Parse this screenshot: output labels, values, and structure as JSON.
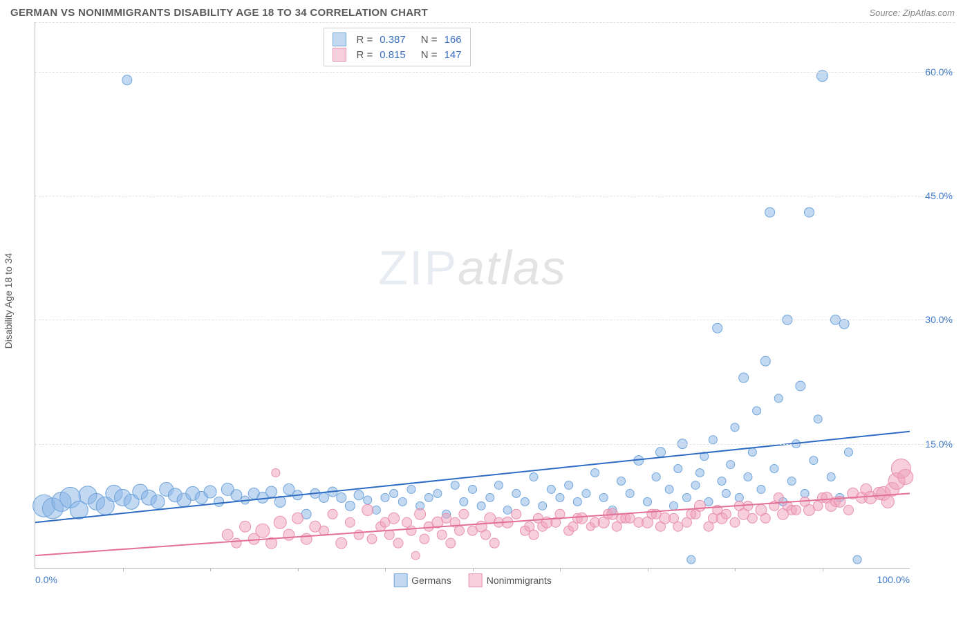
{
  "title": "GERMAN VS NONIMMIGRANTS DISABILITY AGE 18 TO 34 CORRELATION CHART",
  "source": "Source: ZipAtlas.com",
  "ylabel": "Disability Age 18 to 34",
  "watermark_a": "ZIP",
  "watermark_b": "atlas",
  "chart": {
    "type": "scatter",
    "xlim": [
      0,
      100
    ],
    "ylim": [
      0,
      66
    ],
    "x_ticks": [
      0,
      100
    ],
    "x_tick_labels": [
      "0.0%",
      "100.0%"
    ],
    "x_minor_ticks": [
      10,
      20,
      30,
      40,
      50,
      60,
      70,
      80,
      90
    ],
    "y_gridlines": [
      15,
      30,
      45,
      60,
      66
    ],
    "y_tick_labels": [
      "15.0%",
      "30.0%",
      "45.0%",
      "60.0%",
      ""
    ],
    "background_color": "#ffffff",
    "grid_color": "#e0e0e0"
  },
  "series": [
    {
      "name": "Germans",
      "color_fill": "rgba(135,180,230,0.5)",
      "color_stroke": "#6fa4db",
      "line_color": "#2e6cc4",
      "line_width": 2,
      "R": "0.387",
      "N": "166",
      "trend": {
        "x1": 0,
        "y1": 5.5,
        "x2": 100,
        "y2": 16.5
      },
      "points": [
        {
          "x": 1,
          "y": 7.5,
          "r": 16
        },
        {
          "x": 2,
          "y": 7.2,
          "r": 15
        },
        {
          "x": 3,
          "y": 8,
          "r": 14
        },
        {
          "x": 4,
          "y": 8.5,
          "r": 15
        },
        {
          "x": 5,
          "y": 7,
          "r": 13
        },
        {
          "x": 6,
          "y": 8.8,
          "r": 13
        },
        {
          "x": 7,
          "y": 8,
          "r": 12
        },
        {
          "x": 8,
          "y": 7.5,
          "r": 13
        },
        {
          "x": 9,
          "y": 9,
          "r": 12
        },
        {
          "x": 10,
          "y": 8.5,
          "r": 12
        },
        {
          "x": 11,
          "y": 8,
          "r": 11
        },
        {
          "x": 12,
          "y": 9.2,
          "r": 11
        },
        {
          "x": 13,
          "y": 8.5,
          "r": 11
        },
        {
          "x": 14,
          "y": 8,
          "r": 10
        },
        {
          "x": 15,
          "y": 9.5,
          "r": 10
        },
        {
          "x": 16,
          "y": 8.8,
          "r": 10
        },
        {
          "x": 17,
          "y": 8.2,
          "r": 10
        },
        {
          "x": 18,
          "y": 9,
          "r": 10
        },
        {
          "x": 19,
          "y": 8.5,
          "r": 9
        },
        {
          "x": 20,
          "y": 9.2,
          "r": 9
        },
        {
          "x": 21,
          "y": 8,
          "r": 7
        },
        {
          "x": 22,
          "y": 9.5,
          "r": 9
        },
        {
          "x": 23,
          "y": 8.8,
          "r": 8
        },
        {
          "x": 24,
          "y": 8.2,
          "r": 6
        },
        {
          "x": 25,
          "y": 9,
          "r": 8
        },
        {
          "x": 26,
          "y": 8.5,
          "r": 8
        },
        {
          "x": 27,
          "y": 9.2,
          "r": 8
        },
        {
          "x": 28,
          "y": 8,
          "r": 8
        },
        {
          "x": 29,
          "y": 9.5,
          "r": 8
        },
        {
          "x": 30,
          "y": 8.8,
          "r": 7
        },
        {
          "x": 31,
          "y": 6.5,
          "r": 7
        },
        {
          "x": 32,
          "y": 9,
          "r": 7
        },
        {
          "x": 33,
          "y": 8.5,
          "r": 7
        },
        {
          "x": 34,
          "y": 9.2,
          "r": 7
        },
        {
          "x": 35,
          "y": 8.5,
          "r": 7
        },
        {
          "x": 36,
          "y": 7.5,
          "r": 7
        },
        {
          "x": 37,
          "y": 8.8,
          "r": 7
        },
        {
          "x": 38,
          "y": 8.2,
          "r": 6
        },
        {
          "x": 39,
          "y": 7,
          "r": 6
        },
        {
          "x": 40,
          "y": 8.5,
          "r": 6
        },
        {
          "x": 41,
          "y": 9,
          "r": 6
        },
        {
          "x": 42,
          "y": 8,
          "r": 6
        },
        {
          "x": 43,
          "y": 9.5,
          "r": 6
        },
        {
          "x": 44,
          "y": 7.5,
          "r": 6
        },
        {
          "x": 45,
          "y": 8.5,
          "r": 6
        },
        {
          "x": 46,
          "y": 9,
          "r": 6
        },
        {
          "x": 47,
          "y": 6.5,
          "r": 6
        },
        {
          "x": 48,
          "y": 10,
          "r": 6
        },
        {
          "x": 49,
          "y": 8,
          "r": 6
        },
        {
          "x": 50,
          "y": 9.5,
          "r": 6
        },
        {
          "x": 51,
          "y": 7.5,
          "r": 6
        },
        {
          "x": 52,
          "y": 8.5,
          "r": 6
        },
        {
          "x": 53,
          "y": 10,
          "r": 6
        },
        {
          "x": 54,
          "y": 7,
          "r": 6
        },
        {
          "x": 55,
          "y": 9,
          "r": 6
        },
        {
          "x": 56,
          "y": 8,
          "r": 6
        },
        {
          "x": 57,
          "y": 11,
          "r": 6
        },
        {
          "x": 58,
          "y": 7.5,
          "r": 6
        },
        {
          "x": 59,
          "y": 9.5,
          "r": 6
        },
        {
          "x": 60,
          "y": 8.5,
          "r": 6
        },
        {
          "x": 61,
          "y": 10,
          "r": 6
        },
        {
          "x": 62,
          "y": 8,
          "r": 6
        },
        {
          "x": 63,
          "y": 9,
          "r": 6
        },
        {
          "x": 64,
          "y": 11.5,
          "r": 6
        },
        {
          "x": 65,
          "y": 8.5,
          "r": 6
        },
        {
          "x": 66,
          "y": 7,
          "r": 6
        },
        {
          "x": 67,
          "y": 10.5,
          "r": 6
        },
        {
          "x": 68,
          "y": 9,
          "r": 6
        },
        {
          "x": 69,
          "y": 13,
          "r": 7
        },
        {
          "x": 70,
          "y": 8,
          "r": 6
        },
        {
          "x": 71,
          "y": 11,
          "r": 6
        },
        {
          "x": 71.5,
          "y": 14,
          "r": 7
        },
        {
          "x": 72.5,
          "y": 9.5,
          "r": 6
        },
        {
          "x": 73,
          "y": 7.5,
          "r": 6
        },
        {
          "x": 73.5,
          "y": 12,
          "r": 6
        },
        {
          "x": 74,
          "y": 15,
          "r": 7
        },
        {
          "x": 74.5,
          "y": 8.5,
          "r": 6
        },
        {
          "x": 75.5,
          "y": 10,
          "r": 6
        },
        {
          "x": 76,
          "y": 11.5,
          "r": 6
        },
        {
          "x": 76.5,
          "y": 13.5,
          "r": 6
        },
        {
          "x": 77,
          "y": 8,
          "r": 6
        },
        {
          "x": 77.5,
          "y": 15.5,
          "r": 6
        },
        {
          "x": 78,
          "y": 29,
          "r": 7
        },
        {
          "x": 78.5,
          "y": 10.5,
          "r": 6
        },
        {
          "x": 79,
          "y": 9,
          "r": 6
        },
        {
          "x": 79.5,
          "y": 12.5,
          "r": 6
        },
        {
          "x": 80,
          "y": 17,
          "r": 6
        },
        {
          "x": 80.5,
          "y": 8.5,
          "r": 6
        },
        {
          "x": 81,
          "y": 23,
          "r": 7
        },
        {
          "x": 81.5,
          "y": 11,
          "r": 6
        },
        {
          "x": 82,
          "y": 14,
          "r": 6
        },
        {
          "x": 82.5,
          "y": 19,
          "r": 6
        },
        {
          "x": 83,
          "y": 9.5,
          "r": 6
        },
        {
          "x": 83.5,
          "y": 25,
          "r": 7
        },
        {
          "x": 84,
          "y": 43,
          "r": 7
        },
        {
          "x": 84.5,
          "y": 12,
          "r": 6
        },
        {
          "x": 85,
          "y": 20.5,
          "r": 6
        },
        {
          "x": 85.5,
          "y": 8,
          "r": 6
        },
        {
          "x": 86,
          "y": 30,
          "r": 7
        },
        {
          "x": 86.5,
          "y": 10.5,
          "r": 6
        },
        {
          "x": 87,
          "y": 15,
          "r": 6
        },
        {
          "x": 87.5,
          "y": 22,
          "r": 7
        },
        {
          "x": 88,
          "y": 9,
          "r": 6
        },
        {
          "x": 88.5,
          "y": 43,
          "r": 7
        },
        {
          "x": 89,
          "y": 13,
          "r": 6
        },
        {
          "x": 89.5,
          "y": 18,
          "r": 6
        },
        {
          "x": 90,
          "y": 59.5,
          "r": 8
        },
        {
          "x": 75,
          "y": 1,
          "r": 6
        },
        {
          "x": 91,
          "y": 11,
          "r": 6
        },
        {
          "x": 91.5,
          "y": 30,
          "r": 7
        },
        {
          "x": 92,
          "y": 8.5,
          "r": 6
        },
        {
          "x": 92.5,
          "y": 29.5,
          "r": 7
        },
        {
          "x": 93,
          "y": 14,
          "r": 6
        },
        {
          "x": 94,
          "y": 1,
          "r": 6
        },
        {
          "x": 10.5,
          "y": 59,
          "r": 7
        }
      ]
    },
    {
      "name": "Nonimmigrants",
      "color_fill": "rgba(240,160,185,0.5)",
      "color_stroke": "#e891ae",
      "line_color": "#e36f94",
      "line_width": 2,
      "R": "0.815",
      "N": "147",
      "trend": {
        "x1": 0,
        "y1": 1.5,
        "x2": 100,
        "y2": 9
      },
      "points": [
        {
          "x": 22,
          "y": 4,
          "r": 8
        },
        {
          "x": 23,
          "y": 3,
          "r": 7
        },
        {
          "x": 24,
          "y": 5,
          "r": 8
        },
        {
          "x": 25,
          "y": 3.5,
          "r": 8
        },
        {
          "x": 26,
          "y": 4.5,
          "r": 10
        },
        {
          "x": 27,
          "y": 3,
          "r": 8
        },
        {
          "x": 27.5,
          "y": 11.5,
          "r": 6
        },
        {
          "x": 28,
          "y": 5.5,
          "r": 9
        },
        {
          "x": 29,
          "y": 4,
          "r": 8
        },
        {
          "x": 30,
          "y": 6,
          "r": 8
        },
        {
          "x": 31,
          "y": 3.5,
          "r": 8
        },
        {
          "x": 32,
          "y": 5,
          "r": 8
        },
        {
          "x": 33,
          "y": 4.5,
          "r": 7
        },
        {
          "x": 34,
          "y": 6.5,
          "r": 7
        },
        {
          "x": 35,
          "y": 3,
          "r": 8
        },
        {
          "x": 36,
          "y": 5.5,
          "r": 7
        },
        {
          "x": 37,
          "y": 4,
          "r": 7
        },
        {
          "x": 38,
          "y": 7,
          "r": 8
        },
        {
          "x": 38.5,
          "y": 3.5,
          "r": 7
        },
        {
          "x": 39.5,
          "y": 5,
          "r": 7
        },
        {
          "x": 40,
          "y": 5.5,
          "r": 7
        },
        {
          "x": 40.5,
          "y": 4,
          "r": 7
        },
        {
          "x": 41,
          "y": 6,
          "r": 8
        },
        {
          "x": 41.5,
          "y": 3,
          "r": 7
        },
        {
          "x": 42.5,
          "y": 5.5,
          "r": 7
        },
        {
          "x": 43,
          "y": 4.5,
          "r": 7
        },
        {
          "x": 43.5,
          "y": 1.5,
          "r": 6
        },
        {
          "x": 44,
          "y": 6.5,
          "r": 8
        },
        {
          "x": 44.5,
          "y": 3.5,
          "r": 7
        },
        {
          "x": 45,
          "y": 5,
          "r": 7
        },
        {
          "x": 46,
          "y": 5.5,
          "r": 8
        },
        {
          "x": 46.5,
          "y": 4,
          "r": 7
        },
        {
          "x": 47,
          "y": 6,
          "r": 7
        },
        {
          "x": 47.5,
          "y": 3,
          "r": 7
        },
        {
          "x": 48,
          "y": 5.5,
          "r": 7
        },
        {
          "x": 48.5,
          "y": 4.5,
          "r": 7
        },
        {
          "x": 49,
          "y": 6.5,
          "r": 7
        },
        {
          "x": 50,
          "y": 4.5,
          "r": 7
        },
        {
          "x": 51,
          "y": 5,
          "r": 8
        },
        {
          "x": 51.5,
          "y": 4,
          "r": 7
        },
        {
          "x": 52,
          "y": 6,
          "r": 8
        },
        {
          "x": 52.5,
          "y": 3,
          "r": 7
        },
        {
          "x": 53,
          "y": 5.5,
          "r": 7
        },
        {
          "x": 54,
          "y": 5.5,
          "r": 8
        },
        {
          "x": 55,
          "y": 6.5,
          "r": 7
        },
        {
          "x": 56,
          "y": 4.5,
          "r": 7
        },
        {
          "x": 56.5,
          "y": 5,
          "r": 7
        },
        {
          "x": 57,
          "y": 4,
          "r": 7
        },
        {
          "x": 57.5,
          "y": 6,
          "r": 7
        },
        {
          "x": 58,
          "y": 5,
          "r": 7
        },
        {
          "x": 58.5,
          "y": 5.5,
          "r": 8
        },
        {
          "x": 59.5,
          "y": 5.5,
          "r": 7
        },
        {
          "x": 60,
          "y": 6.5,
          "r": 7
        },
        {
          "x": 61,
          "y": 4.5,
          "r": 7
        },
        {
          "x": 61.5,
          "y": 5,
          "r": 7
        },
        {
          "x": 62,
          "y": 6,
          "r": 7
        },
        {
          "x": 62.5,
          "y": 6,
          "r": 8
        },
        {
          "x": 63.5,
          "y": 5,
          "r": 6
        },
        {
          "x": 64,
          "y": 5.5,
          "r": 7
        },
        {
          "x": 65,
          "y": 5.5,
          "r": 8
        },
        {
          "x": 65.5,
          "y": 6.5,
          "r": 7
        },
        {
          "x": 66,
          "y": 6.5,
          "r": 8
        },
        {
          "x": 66.5,
          "y": 5,
          "r": 7
        },
        {
          "x": 67,
          "y": 6,
          "r": 7
        },
        {
          "x": 67.5,
          "y": 6,
          "r": 7
        },
        {
          "x": 68,
          "y": 6,
          "r": 7
        },
        {
          "x": 69,
          "y": 5.5,
          "r": 7
        },
        {
          "x": 70,
          "y": 5.5,
          "r": 8
        },
        {
          "x": 70.5,
          "y": 6.5,
          "r": 7
        },
        {
          "x": 71,
          "y": 6.5,
          "r": 7
        },
        {
          "x": 71.5,
          "y": 5,
          "r": 7
        },
        {
          "x": 72,
          "y": 6,
          "r": 8
        },
        {
          "x": 73,
          "y": 6,
          "r": 7
        },
        {
          "x": 73.5,
          "y": 5,
          "r": 7
        },
        {
          "x": 74.5,
          "y": 5.5,
          "r": 7
        },
        {
          "x": 75,
          "y": 6.5,
          "r": 7
        },
        {
          "x": 75.5,
          "y": 6.5,
          "r": 7
        },
        {
          "x": 76,
          "y": 7.5,
          "r": 8
        },
        {
          "x": 77,
          "y": 5,
          "r": 7
        },
        {
          "x": 77.5,
          "y": 6,
          "r": 7
        },
        {
          "x": 78,
          "y": 7,
          "r": 7
        },
        {
          "x": 78.5,
          "y": 6,
          "r": 8
        },
        {
          "x": 79,
          "y": 6.5,
          "r": 7
        },
        {
          "x": 80,
          "y": 5.5,
          "r": 7
        },
        {
          "x": 80.5,
          "y": 7.5,
          "r": 7
        },
        {
          "x": 81,
          "y": 6.5,
          "r": 8
        },
        {
          "x": 81.5,
          "y": 7.5,
          "r": 7
        },
        {
          "x": 82,
          "y": 6,
          "r": 7
        },
        {
          "x": 83,
          "y": 7,
          "r": 8
        },
        {
          "x": 83.5,
          "y": 6,
          "r": 7
        },
        {
          "x": 84.5,
          "y": 7.5,
          "r": 7
        },
        {
          "x": 85,
          "y": 8.5,
          "r": 7
        },
        {
          "x": 85.5,
          "y": 6.5,
          "r": 8
        },
        {
          "x": 86,
          "y": 7.5,
          "r": 7
        },
        {
          "x": 86.5,
          "y": 7,
          "r": 7
        },
        {
          "x": 87,
          "y": 7,
          "r": 7
        },
        {
          "x": 88,
          "y": 8,
          "r": 7
        },
        {
          "x": 88.5,
          "y": 7,
          "r": 8
        },
        {
          "x": 89.5,
          "y": 7.5,
          "r": 7
        },
        {
          "x": 90,
          "y": 8.5,
          "r": 7
        },
        {
          "x": 90.5,
          "y": 8.5,
          "r": 8
        },
        {
          "x": 91,
          "y": 7.5,
          "r": 8
        },
        {
          "x": 91.5,
          "y": 8,
          "r": 7
        },
        {
          "x": 92,
          "y": 8,
          "r": 8
        },
        {
          "x": 93,
          "y": 7,
          "r": 7
        },
        {
          "x": 93.5,
          "y": 9,
          "r": 8
        },
        {
          "x": 94.5,
          "y": 8.5,
          "r": 8
        },
        {
          "x": 95,
          "y": 9.5,
          "r": 8
        },
        {
          "x": 95.5,
          "y": 8.5,
          "r": 9
        },
        {
          "x": 96.5,
          "y": 9,
          "r": 9
        },
        {
          "x": 97,
          "y": 9,
          "r": 10
        },
        {
          "x": 97.5,
          "y": 8,
          "r": 9
        },
        {
          "x": 98,
          "y": 9.5,
          "r": 10
        },
        {
          "x": 98.5,
          "y": 10.5,
          "r": 12
        },
        {
          "x": 99,
          "y": 12,
          "r": 14
        },
        {
          "x": 99.5,
          "y": 11,
          "r": 11
        }
      ]
    }
  ],
  "legend": {
    "items": [
      "Germans",
      "Nonimmigrants"
    ]
  }
}
